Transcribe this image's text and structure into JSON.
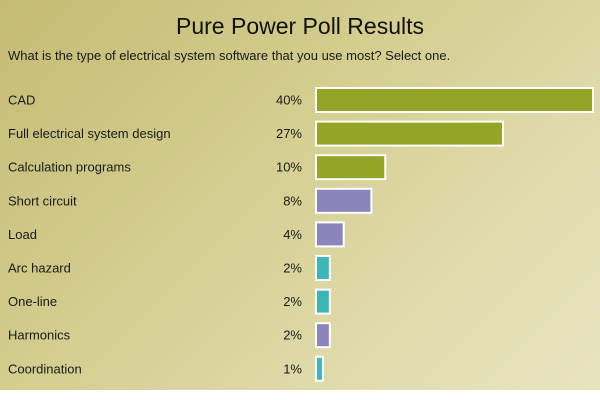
{
  "chart_data": {
    "type": "bar",
    "orientation": "horizontal",
    "title": "Pure Power Poll Results",
    "subtitle": "What is the type of electrical system software that you use most? Select one.",
    "categories": [
      "CAD",
      "Full electrical system design",
      "Calculation programs",
      "Short circuit",
      "Load",
      "Arc hazard",
      "One-line",
      "Harmonics",
      "Coordination"
    ],
    "values": [
      40,
      27,
      10,
      8,
      4,
      2,
      2,
      2,
      1
    ],
    "value_labels": [
      "40%",
      "27%",
      "10%",
      "8%",
      "4%",
      "2%",
      "2%",
      "2%",
      "1%"
    ],
    "unit": "%",
    "xlim": [
      0,
      40
    ],
    "grid": false,
    "colors": [
      "#93a526",
      "#93a526",
      "#93a526",
      "#8a86bc",
      "#8a86bc",
      "#3fb6b6",
      "#3fb6b6",
      "#8a86bc",
      "#3fb6b6"
    ],
    "bar_border_color": "#ffffff"
  }
}
